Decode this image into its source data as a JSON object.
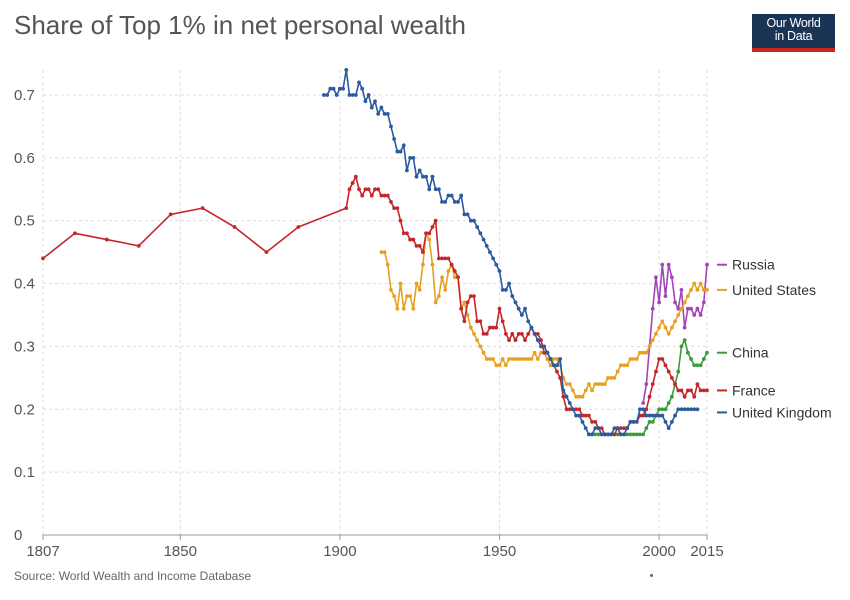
{
  "title": "Share of Top 1% in net personal wealth",
  "logo": {
    "line1": "Our World",
    "line2": "in Data"
  },
  "source": "Source: World Wealth and Income Database",
  "chart_data": {
    "type": "line",
    "title": "Share of Top 1% in net personal wealth",
    "xlabel": "",
    "ylabel": "",
    "xlim": [
      1807,
      2015
    ],
    "ylim": [
      0,
      0.7
    ],
    "x_ticks": [
      1807,
      1850,
      1900,
      1950,
      2000,
      2015
    ],
    "y_ticks": [
      0,
      0.1,
      0.2,
      0.3,
      0.4,
      0.5,
      0.6,
      0.7
    ],
    "y_tick_labels": [
      "0",
      "0.1",
      "0.2",
      "0.3",
      "0.4",
      "0.5",
      "0.6",
      "0.7"
    ],
    "grid": true,
    "legend_placement": "right, at series end",
    "series": [
      {
        "name": "Russia",
        "color": "#a444b7",
        "x": [
          1995,
          1996,
          1997,
          1998,
          1999,
          2000,
          2001,
          2002,
          2003,
          2004,
          2005,
          2006,
          2007,
          2008,
          2009,
          2010,
          2011,
          2012,
          2013,
          2014,
          2015
        ],
        "y": [
          0.21,
          0.24,
          0.3,
          0.36,
          0.41,
          0.37,
          0.43,
          0.38,
          0.43,
          0.41,
          0.37,
          0.36,
          0.39,
          0.33,
          0.36,
          0.36,
          0.35,
          0.36,
          0.35,
          0.37,
          0.43
        ]
      },
      {
        "name": "United States",
        "color": "#e8a022",
        "x": [
          1913,
          1914,
          1915,
          1916,
          1917,
          1918,
          1919,
          1920,
          1921,
          1922,
          1923,
          1924,
          1925,
          1926,
          1927,
          1928,
          1929,
          1930,
          1931,
          1932,
          1933,
          1934,
          1935,
          1936,
          1937,
          1938,
          1939,
          1940,
          1941,
          1942,
          1943,
          1944,
          1945,
          1946,
          1947,
          1948,
          1949,
          1950,
          1951,
          1952,
          1953,
          1954,
          1955,
          1956,
          1957,
          1958,
          1959,
          1960,
          1961,
          1962,
          1963,
          1964,
          1965,
          1966,
          1967,
          1968,
          1969,
          1970,
          1971,
          1972,
          1973,
          1974,
          1975,
          1976,
          1977,
          1978,
          1979,
          1980,
          1981,
          1982,
          1983,
          1984,
          1985,
          1986,
          1987,
          1988,
          1989,
          1990,
          1991,
          1992,
          1993,
          1994,
          1995,
          1996,
          1997,
          1998,
          1999,
          2000,
          2001,
          2002,
          2003,
          2004,
          2005,
          2006,
          2007,
          2008,
          2009,
          2010,
          2011,
          2012,
          2013,
          2014,
          2015
        ],
        "y": [
          0.45,
          0.45,
          0.43,
          0.39,
          0.38,
          0.36,
          0.4,
          0.36,
          0.38,
          0.38,
          0.36,
          0.4,
          0.39,
          0.43,
          0.48,
          0.47,
          0.43,
          0.37,
          0.38,
          0.41,
          0.39,
          0.42,
          0.43,
          0.41,
          0.41,
          0.36,
          0.37,
          0.35,
          0.33,
          0.32,
          0.31,
          0.3,
          0.29,
          0.28,
          0.28,
          0.28,
          0.27,
          0.27,
          0.28,
          0.27,
          0.28,
          0.28,
          0.28,
          0.28,
          0.28,
          0.28,
          0.28,
          0.28,
          0.29,
          0.28,
          0.29,
          0.29,
          0.28,
          0.27,
          0.28,
          0.28,
          0.27,
          0.25,
          0.24,
          0.24,
          0.23,
          0.22,
          0.22,
          0.22,
          0.23,
          0.24,
          0.23,
          0.24,
          0.24,
          0.24,
          0.24,
          0.25,
          0.25,
          0.25,
          0.26,
          0.27,
          0.27,
          0.27,
          0.28,
          0.28,
          0.28,
          0.29,
          0.29,
          0.29,
          0.3,
          0.31,
          0.32,
          0.33,
          0.34,
          0.33,
          0.32,
          0.33,
          0.34,
          0.35,
          0.36,
          0.37,
          0.38,
          0.39,
          0.4,
          0.39,
          0.4,
          0.39,
          0.39
        ]
      },
      {
        "name": "China",
        "color": "#3b9a3c",
        "x": [
          1978,
          1979,
          1980,
          1981,
          1982,
          1983,
          1984,
          1985,
          1986,
          1987,
          1988,
          1989,
          1990,
          1991,
          1992,
          1993,
          1994,
          1995,
          1996,
          1997,
          1998,
          1999,
          2000,
          2001,
          2002,
          2003,
          2004,
          2005,
          2006,
          2007,
          2008,
          2009,
          2010,
          2011,
          2012,
          2013,
          2014,
          2015
        ],
        "y": [
          0.16,
          0.16,
          0.16,
          0.16,
          0.16,
          0.16,
          0.16,
          0.16,
          0.16,
          0.16,
          0.16,
          0.16,
          0.16,
          0.16,
          0.16,
          0.16,
          0.16,
          0.16,
          0.17,
          0.18,
          0.18,
          0.19,
          0.2,
          0.2,
          0.2,
          0.21,
          0.22,
          0.24,
          0.26,
          0.3,
          0.31,
          0.29,
          0.28,
          0.27,
          0.27,
          0.27,
          0.28,
          0.29
        ]
      },
      {
        "name": "France",
        "color": "#c3272b",
        "x": [
          1807,
          1817,
          1827,
          1837,
          1847,
          1857,
          1867,
          1877,
          1887,
          1902,
          1903,
          1904,
          1905,
          1906,
          1907,
          1908,
          1909,
          1910,
          1911,
          1912,
          1913,
          1914,
          1915,
          1916,
          1917,
          1918,
          1919,
          1920,
          1921,
          1922,
          1923,
          1924,
          1925,
          1926,
          1927,
          1928,
          1929,
          1930,
          1931,
          1932,
          1933,
          1934,
          1935,
          1936,
          1937,
          1938,
          1939,
          1940,
          1941,
          1942,
          1943,
          1944,
          1945,
          1946,
          1947,
          1948,
          1949,
          1950,
          1951,
          1952,
          1953,
          1954,
          1955,
          1956,
          1957,
          1958,
          1959,
          1960,
          1961,
          1962,
          1963,
          1964,
          1965,
          1966,
          1967,
          1968,
          1969,
          1970,
          1971,
          1972,
          1973,
          1974,
          1975,
          1976,
          1977,
          1978,
          1979,
          1980,
          1981,
          1982,
          1983,
          1984,
          1985,
          1986,
          1987,
          1988,
          1989,
          1990,
          1991,
          1992,
          1993,
          1994,
          1995,
          1996,
          1997,
          1998,
          1999,
          2000,
          2001,
          2002,
          2003,
          2004,
          2005,
          2006,
          2007,
          2008,
          2009,
          2010,
          2011,
          2012,
          2013,
          2014,
          2015
        ],
        "y": [
          0.44,
          0.48,
          0.47,
          0.46,
          0.51,
          0.52,
          0.49,
          0.45,
          0.49,
          0.52,
          0.55,
          0.56,
          0.57,
          0.55,
          0.54,
          0.55,
          0.55,
          0.54,
          0.55,
          0.55,
          0.54,
          0.54,
          0.54,
          0.53,
          0.52,
          0.52,
          0.5,
          0.48,
          0.48,
          0.47,
          0.47,
          0.46,
          0.46,
          0.45,
          0.48,
          0.48,
          0.49,
          0.5,
          0.44,
          0.44,
          0.44,
          0.44,
          0.43,
          0.42,
          0.41,
          0.36,
          0.34,
          0.37,
          0.38,
          0.38,
          0.34,
          0.34,
          0.32,
          0.32,
          0.33,
          0.33,
          0.33,
          0.36,
          0.34,
          0.32,
          0.31,
          0.32,
          0.31,
          0.32,
          0.32,
          0.31,
          0.32,
          0.33,
          0.32,
          0.32,
          0.31,
          0.29,
          0.29,
          0.28,
          0.27,
          0.26,
          0.25,
          0.22,
          0.2,
          0.2,
          0.2,
          0.2,
          0.2,
          0.19,
          0.19,
          0.19,
          0.18,
          0.18,
          0.17,
          0.17,
          0.16,
          0.16,
          0.16,
          0.16,
          0.17,
          0.17,
          0.17,
          0.17,
          0.18,
          0.18,
          0.18,
          0.19,
          0.19,
          0.2,
          0.22,
          0.24,
          0.26,
          0.28,
          0.28,
          0.27,
          0.26,
          0.25,
          0.24,
          0.23,
          0.23,
          0.22,
          0.23,
          0.23,
          0.22,
          0.24,
          0.23,
          0.23,
          0.23
        ]
      },
      {
        "name": "United Kingdom",
        "color": "#2b5a9e",
        "x": [
          1895,
          1896,
          1897,
          1898,
          1899,
          1900,
          1901,
          1902,
          1903,
          1904,
          1905,
          1906,
          1907,
          1908,
          1909,
          1910,
          1911,
          1912,
          1913,
          1914,
          1915,
          1916,
          1917,
          1918,
          1919,
          1920,
          1921,
          1922,
          1923,
          1924,
          1925,
          1926,
          1927,
          1928,
          1929,
          1930,
          1931,
          1932,
          1933,
          1934,
          1935,
          1936,
          1937,
          1938,
          1939,
          1940,
          1941,
          1942,
          1943,
          1944,
          1945,
          1946,
          1947,
          1948,
          1949,
          1950,
          1951,
          1952,
          1953,
          1954,
          1955,
          1956,
          1957,
          1958,
          1959,
          1960,
          1961,
          1962,
          1963,
          1964,
          1965,
          1966,
          1967,
          1968,
          1969,
          1970,
          1971,
          1972,
          1973,
          1974,
          1975,
          1976,
          1977,
          1978,
          1979,
          1980,
          1981,
          1982,
          1983,
          1984,
          1985,
          1986,
          1987,
          1988,
          1989,
          1990,
          1991,
          1992,
          1993,
          1994,
          1995,
          1996,
          1997,
          1998,
          1999,
          2000,
          2001,
          2002,
          2003,
          2004,
          2005,
          2006,
          2007,
          2008,
          2009,
          2010,
          2011,
          2012
        ],
        "y": [
          0.7,
          0.7,
          0.71,
          0.71,
          0.7,
          0.71,
          0.71,
          0.74,
          0.7,
          0.7,
          0.7,
          0.72,
          0.71,
          0.69,
          0.7,
          0.68,
          0.69,
          0.67,
          0.68,
          0.67,
          0.67,
          0.65,
          0.63,
          0.61,
          0.61,
          0.62,
          0.58,
          0.6,
          0.6,
          0.57,
          0.58,
          0.57,
          0.57,
          0.55,
          0.57,
          0.55,
          0.55,
          0.53,
          0.53,
          0.54,
          0.54,
          0.53,
          0.53,
          0.54,
          0.51,
          0.51,
          0.5,
          0.5,
          0.49,
          0.48,
          0.47,
          0.46,
          0.45,
          0.44,
          0.43,
          0.42,
          0.39,
          0.39,
          0.4,
          0.38,
          0.37,
          0.36,
          0.35,
          0.36,
          0.34,
          0.33,
          0.32,
          0.31,
          0.3,
          0.3,
          0.29,
          0.28,
          0.27,
          0.27,
          0.28,
          0.23,
          0.22,
          0.21,
          0.2,
          0.19,
          0.19,
          0.18,
          0.17,
          0.16,
          0.16,
          0.17,
          0.17,
          0.16,
          0.16,
          0.16,
          0.16,
          0.17,
          0.17,
          0.16,
          0.16,
          0.17,
          0.18,
          0.18,
          0.18,
          0.2,
          0.2,
          0.19,
          0.19,
          0.19,
          0.19,
          0.19,
          0.19,
          0.18,
          0.17,
          0.18,
          0.19,
          0.2,
          0.2,
          0.2,
          0.2,
          0.2,
          0.2,
          0.2
        ]
      }
    ]
  }
}
